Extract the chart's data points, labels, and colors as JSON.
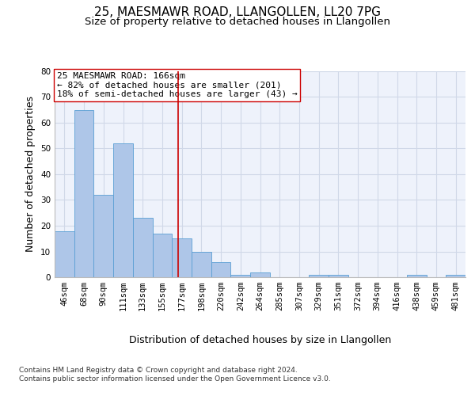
{
  "title": "25, MAESMAWR ROAD, LLANGOLLEN, LL20 7PG",
  "subtitle": "Size of property relative to detached houses in Llangollen",
  "xlabel": "Distribution of detached houses by size in Llangollen",
  "ylabel": "Number of detached properties",
  "categories": [
    "46sqm",
    "68sqm",
    "90sqm",
    "111sqm",
    "133sqm",
    "155sqm",
    "177sqm",
    "198sqm",
    "220sqm",
    "242sqm",
    "264sqm",
    "285sqm",
    "307sqm",
    "329sqm",
    "351sqm",
    "372sqm",
    "394sqm",
    "416sqm",
    "438sqm",
    "459sqm",
    "481sqm"
  ],
  "values": [
    18,
    65,
    32,
    52,
    23,
    17,
    15,
    10,
    6,
    1,
    2,
    0,
    0,
    1,
    1,
    0,
    0,
    0,
    1,
    0,
    1
  ],
  "bar_color": "#aec6e8",
  "bar_edge_color": "#5a9fd4",
  "grid_color": "#d0d8e8",
  "background_color": "#eef2fb",
  "vline_x": 5.82,
  "vline_color": "#cc0000",
  "annotation_text": "25 MAESMAWR ROAD: 166sqm\n← 82% of detached houses are smaller (201)\n18% of semi-detached houses are larger (43) →",
  "annotation_box_color": "#ffffff",
  "annotation_box_edge": "#cc0000",
  "footnote1": "Contains HM Land Registry data © Crown copyright and database right 2024.",
  "footnote2": "Contains public sector information licensed under the Open Government Licence v3.0.",
  "ylim": [
    0,
    80
  ],
  "yticks": [
    0,
    10,
    20,
    30,
    40,
    50,
    60,
    70,
    80
  ],
  "title_fontsize": 11,
  "subtitle_fontsize": 9.5,
  "axis_label_fontsize": 9,
  "tick_fontsize": 7.5,
  "annotation_fontsize": 8,
  "footnote_fontsize": 6.5
}
